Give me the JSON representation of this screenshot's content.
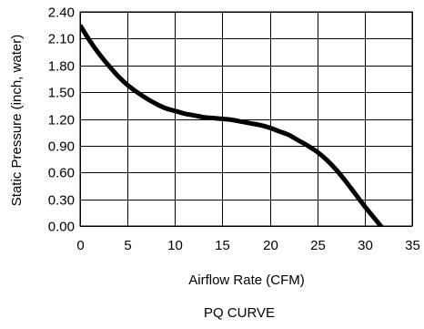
{
  "chart_data": {
    "type": "line",
    "title": "PQ CURVE",
    "xlabel": "Airflow Rate (CFM)",
    "ylabel": "Static Pressure (inch, water)",
    "xlim": [
      0,
      35
    ],
    "ylim": [
      0,
      2.4
    ],
    "xticks": [
      "0",
      "5",
      "10",
      "15",
      "20",
      "25",
      "30",
      "35"
    ],
    "yticks": [
      "0.00",
      "0.30",
      "0.60",
      "0.90",
      "1.20",
      "1.50",
      "1.80",
      "2.10",
      "2.40"
    ],
    "grid": true,
    "legend": "none",
    "series": [
      {
        "color": "#000000",
        "x": [
          0,
          1,
          2,
          3,
          4,
          5,
          6,
          7,
          8,
          9,
          10,
          11,
          12,
          13,
          14,
          15,
          16,
          17,
          18,
          19,
          20,
          21,
          22,
          23,
          24,
          25,
          26,
          27,
          28,
          29,
          30,
          31,
          32,
          32.7
        ],
        "y": [
          2.25,
          2.08,
          1.93,
          1.8,
          1.68,
          1.58,
          1.5,
          1.43,
          1.37,
          1.32,
          1.29,
          1.26,
          1.24,
          1.22,
          1.21,
          1.2,
          1.19,
          1.17,
          1.15,
          1.13,
          1.1,
          1.06,
          1.02,
          0.96,
          0.9,
          0.83,
          0.74,
          0.63,
          0.5,
          0.36,
          0.22,
          0.09,
          -0.04,
          -0.13
        ]
      }
    ]
  }
}
